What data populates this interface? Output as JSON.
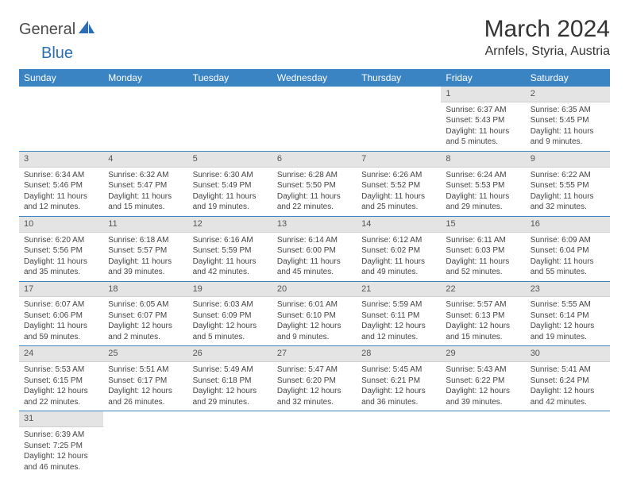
{
  "logo": {
    "general": "General",
    "blue": "Blue"
  },
  "title": "March 2024",
  "location": "Arnfels, Styria, Austria",
  "colors": {
    "header_bg": "#3b84c4",
    "header_text": "#ffffff",
    "daynum_bg": "#e4e4e4",
    "row_border": "#3b84c4",
    "logo_blue": "#2a6fb5"
  },
  "weekdays": [
    "Sunday",
    "Monday",
    "Tuesday",
    "Wednesday",
    "Thursday",
    "Friday",
    "Saturday"
  ],
  "weeks": [
    [
      null,
      null,
      null,
      null,
      null,
      {
        "n": "1",
        "sunrise": "Sunrise: 6:37 AM",
        "sunset": "Sunset: 5:43 PM",
        "day1": "Daylight: 11 hours",
        "day2": "and 5 minutes."
      },
      {
        "n": "2",
        "sunrise": "Sunrise: 6:35 AM",
        "sunset": "Sunset: 5:45 PM",
        "day1": "Daylight: 11 hours",
        "day2": "and 9 minutes."
      }
    ],
    [
      {
        "n": "3",
        "sunrise": "Sunrise: 6:34 AM",
        "sunset": "Sunset: 5:46 PM",
        "day1": "Daylight: 11 hours",
        "day2": "and 12 minutes."
      },
      {
        "n": "4",
        "sunrise": "Sunrise: 6:32 AM",
        "sunset": "Sunset: 5:47 PM",
        "day1": "Daylight: 11 hours",
        "day2": "and 15 minutes."
      },
      {
        "n": "5",
        "sunrise": "Sunrise: 6:30 AM",
        "sunset": "Sunset: 5:49 PM",
        "day1": "Daylight: 11 hours",
        "day2": "and 19 minutes."
      },
      {
        "n": "6",
        "sunrise": "Sunrise: 6:28 AM",
        "sunset": "Sunset: 5:50 PM",
        "day1": "Daylight: 11 hours",
        "day2": "and 22 minutes."
      },
      {
        "n": "7",
        "sunrise": "Sunrise: 6:26 AM",
        "sunset": "Sunset: 5:52 PM",
        "day1": "Daylight: 11 hours",
        "day2": "and 25 minutes."
      },
      {
        "n": "8",
        "sunrise": "Sunrise: 6:24 AM",
        "sunset": "Sunset: 5:53 PM",
        "day1": "Daylight: 11 hours",
        "day2": "and 29 minutes."
      },
      {
        "n": "9",
        "sunrise": "Sunrise: 6:22 AM",
        "sunset": "Sunset: 5:55 PM",
        "day1": "Daylight: 11 hours",
        "day2": "and 32 minutes."
      }
    ],
    [
      {
        "n": "10",
        "sunrise": "Sunrise: 6:20 AM",
        "sunset": "Sunset: 5:56 PM",
        "day1": "Daylight: 11 hours",
        "day2": "and 35 minutes."
      },
      {
        "n": "11",
        "sunrise": "Sunrise: 6:18 AM",
        "sunset": "Sunset: 5:57 PM",
        "day1": "Daylight: 11 hours",
        "day2": "and 39 minutes."
      },
      {
        "n": "12",
        "sunrise": "Sunrise: 6:16 AM",
        "sunset": "Sunset: 5:59 PM",
        "day1": "Daylight: 11 hours",
        "day2": "and 42 minutes."
      },
      {
        "n": "13",
        "sunrise": "Sunrise: 6:14 AM",
        "sunset": "Sunset: 6:00 PM",
        "day1": "Daylight: 11 hours",
        "day2": "and 45 minutes."
      },
      {
        "n": "14",
        "sunrise": "Sunrise: 6:12 AM",
        "sunset": "Sunset: 6:02 PM",
        "day1": "Daylight: 11 hours",
        "day2": "and 49 minutes."
      },
      {
        "n": "15",
        "sunrise": "Sunrise: 6:11 AM",
        "sunset": "Sunset: 6:03 PM",
        "day1": "Daylight: 11 hours",
        "day2": "and 52 minutes."
      },
      {
        "n": "16",
        "sunrise": "Sunrise: 6:09 AM",
        "sunset": "Sunset: 6:04 PM",
        "day1": "Daylight: 11 hours",
        "day2": "and 55 minutes."
      }
    ],
    [
      {
        "n": "17",
        "sunrise": "Sunrise: 6:07 AM",
        "sunset": "Sunset: 6:06 PM",
        "day1": "Daylight: 11 hours",
        "day2": "and 59 minutes."
      },
      {
        "n": "18",
        "sunrise": "Sunrise: 6:05 AM",
        "sunset": "Sunset: 6:07 PM",
        "day1": "Daylight: 12 hours",
        "day2": "and 2 minutes."
      },
      {
        "n": "19",
        "sunrise": "Sunrise: 6:03 AM",
        "sunset": "Sunset: 6:09 PM",
        "day1": "Daylight: 12 hours",
        "day2": "and 5 minutes."
      },
      {
        "n": "20",
        "sunrise": "Sunrise: 6:01 AM",
        "sunset": "Sunset: 6:10 PM",
        "day1": "Daylight: 12 hours",
        "day2": "and 9 minutes."
      },
      {
        "n": "21",
        "sunrise": "Sunrise: 5:59 AM",
        "sunset": "Sunset: 6:11 PM",
        "day1": "Daylight: 12 hours",
        "day2": "and 12 minutes."
      },
      {
        "n": "22",
        "sunrise": "Sunrise: 5:57 AM",
        "sunset": "Sunset: 6:13 PM",
        "day1": "Daylight: 12 hours",
        "day2": "and 15 minutes."
      },
      {
        "n": "23",
        "sunrise": "Sunrise: 5:55 AM",
        "sunset": "Sunset: 6:14 PM",
        "day1": "Daylight: 12 hours",
        "day2": "and 19 minutes."
      }
    ],
    [
      {
        "n": "24",
        "sunrise": "Sunrise: 5:53 AM",
        "sunset": "Sunset: 6:15 PM",
        "day1": "Daylight: 12 hours",
        "day2": "and 22 minutes."
      },
      {
        "n": "25",
        "sunrise": "Sunrise: 5:51 AM",
        "sunset": "Sunset: 6:17 PM",
        "day1": "Daylight: 12 hours",
        "day2": "and 26 minutes."
      },
      {
        "n": "26",
        "sunrise": "Sunrise: 5:49 AM",
        "sunset": "Sunset: 6:18 PM",
        "day1": "Daylight: 12 hours",
        "day2": "and 29 minutes."
      },
      {
        "n": "27",
        "sunrise": "Sunrise: 5:47 AM",
        "sunset": "Sunset: 6:20 PM",
        "day1": "Daylight: 12 hours",
        "day2": "and 32 minutes."
      },
      {
        "n": "28",
        "sunrise": "Sunrise: 5:45 AM",
        "sunset": "Sunset: 6:21 PM",
        "day1": "Daylight: 12 hours",
        "day2": "and 36 minutes."
      },
      {
        "n": "29",
        "sunrise": "Sunrise: 5:43 AM",
        "sunset": "Sunset: 6:22 PM",
        "day1": "Daylight: 12 hours",
        "day2": "and 39 minutes."
      },
      {
        "n": "30",
        "sunrise": "Sunrise: 5:41 AM",
        "sunset": "Sunset: 6:24 PM",
        "day1": "Daylight: 12 hours",
        "day2": "and 42 minutes."
      }
    ],
    [
      {
        "n": "31",
        "sunrise": "Sunrise: 6:39 AM",
        "sunset": "Sunset: 7:25 PM",
        "day1": "Daylight: 12 hours",
        "day2": "and 46 minutes."
      },
      null,
      null,
      null,
      null,
      null,
      null
    ]
  ]
}
